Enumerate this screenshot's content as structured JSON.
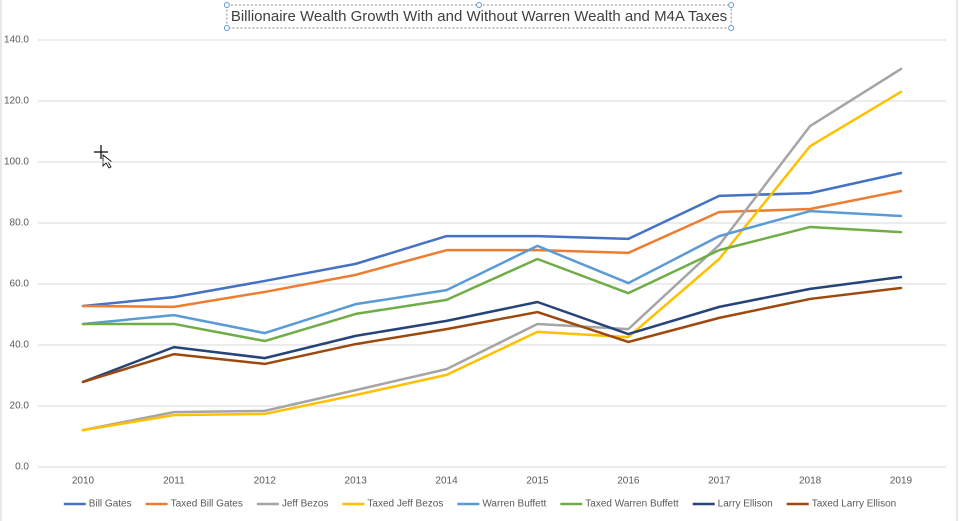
{
  "chart_data": {
    "type": "line",
    "title": "Billionaire Wealth Growth With and Without Warren Wealth and M4A Taxes",
    "categories": [
      "2010",
      "2011",
      "2012",
      "2013",
      "2014",
      "2015",
      "2016",
      "2017",
      "2018",
      "2019"
    ],
    "series": [
      {
        "name": "Bill Gates",
        "color": "#4472c4",
        "values": [
          52.8,
          55.7,
          61.0,
          66.6,
          75.7,
          75.7,
          74.8,
          88.9,
          89.8,
          96.4
        ]
      },
      {
        "name": "Taxed Bill Gates",
        "color": "#ed7d31",
        "values": [
          52.8,
          52.5,
          57.4,
          63.0,
          71.1,
          71.1,
          70.2,
          83.6,
          84.6,
          90.5
        ]
      },
      {
        "name": "Jeff Bezos",
        "color": "#a5a5a5",
        "values": [
          12.1,
          18.0,
          18.4,
          25.2,
          32.1,
          46.9,
          45.2,
          72.8,
          111.8,
          130.5
        ]
      },
      {
        "name": "Taxed Jeff Bezos",
        "color": "#ffc000",
        "values": [
          12.1,
          17.0,
          17.4,
          23.6,
          30.2,
          44.3,
          42.6,
          68.2,
          105.2,
          123.0
        ]
      },
      {
        "name": "Warren Buffett",
        "color": "#5b9bd5",
        "values": [
          46.9,
          49.8,
          43.9,
          53.4,
          58.0,
          72.5,
          60.3,
          75.7,
          83.9,
          82.3
        ]
      },
      {
        "name": "Taxed Warren Buffett",
        "color": "#70ad47",
        "values": [
          46.9,
          46.9,
          41.3,
          50.2,
          54.8,
          68.2,
          57.0,
          71.1,
          78.7,
          77.0
        ]
      },
      {
        "name": "Larry Ellison",
        "color": "#264478",
        "values": [
          27.9,
          39.3,
          35.7,
          43.0,
          47.9,
          54.1,
          43.6,
          52.5,
          58.4,
          62.3
        ]
      },
      {
        "name": "Taxed Larry Ellison",
        "color": "#9e480e",
        "values": [
          27.9,
          37.0,
          33.8,
          40.3,
          45.2,
          50.8,
          41.0,
          48.9,
          55.1,
          58.7
        ]
      }
    ],
    "ylim": [
      0,
      140
    ],
    "yticks": [
      {
        "value": 0,
        "label": "0.0"
      },
      {
        "value": 20,
        "label": "20.0"
      },
      {
        "value": 40,
        "label": "40.0"
      },
      {
        "value": 60,
        "label": "60.0"
      },
      {
        "value": 80,
        "label": "80.0"
      },
      {
        "value": 100,
        "label": "100.0"
      },
      {
        "value": 120,
        "label": "120.0"
      },
      {
        "value": 140,
        "label": "140.0"
      }
    ],
    "grid": true,
    "legend": "bottom"
  }
}
